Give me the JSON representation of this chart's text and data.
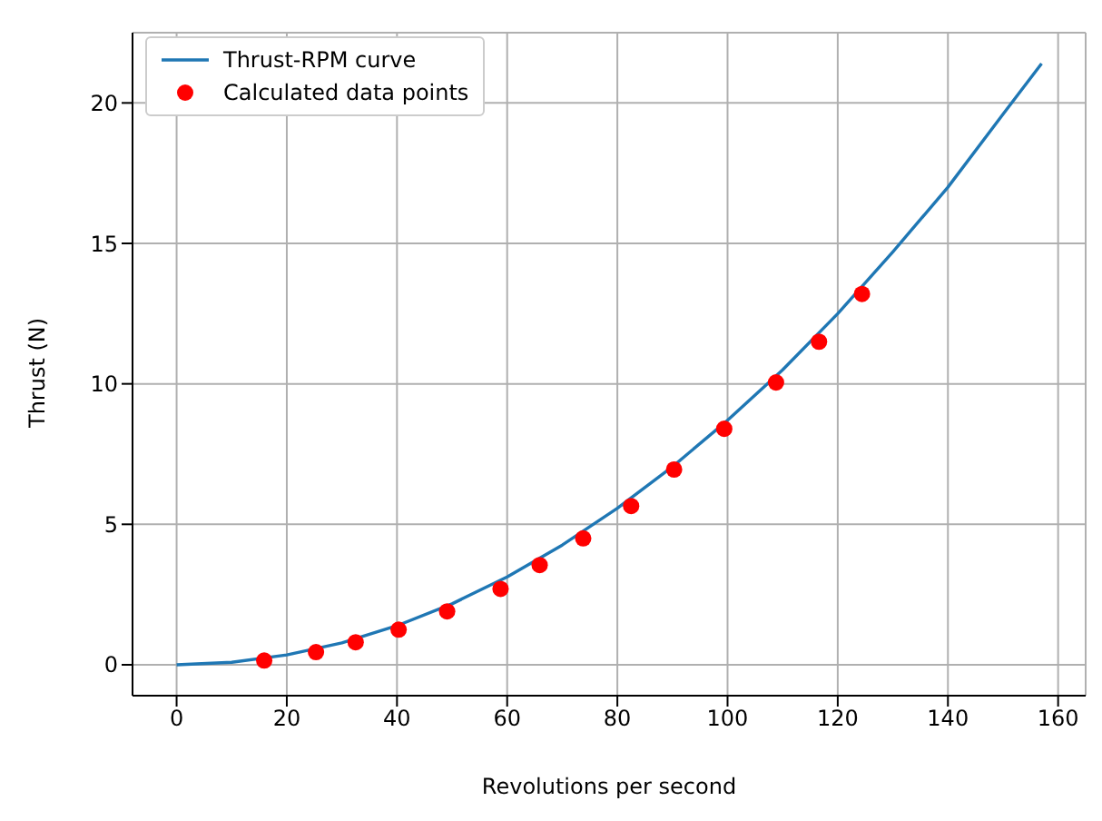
{
  "chart_data": {
    "type": "line",
    "xlabel": "Revolutions per second",
    "ylabel": "Thrust (N)",
    "xlim": [
      -8,
      165
    ],
    "xticks": [
      0,
      20,
      40,
      60,
      80,
      100,
      120,
      140,
      160
    ],
    "ylim": [
      -1.1,
      22.5
    ],
    "yticks": [
      0,
      5,
      10,
      15,
      20
    ],
    "grid": true,
    "legend": "top left",
    "series": [
      {
        "name": "Thrust-RPM curve",
        "color": "#1f77b4",
        "marker": "none",
        "line_style": "solid",
        "x": [
          0,
          10,
          20,
          30,
          40,
          50,
          60,
          70,
          80,
          90,
          100,
          110,
          120,
          130,
          140,
          150,
          157
        ],
        "values": [
          0,
          0.09,
          0.35,
          0.78,
          1.39,
          2.17,
          3.13,
          4.26,
          5.57,
          7.05,
          8.7,
          10.5,
          12.5,
          14.7,
          17.0,
          19.6,
          21.4
        ]
      },
      {
        "name": "Calculated data points",
        "type": "scatter",
        "color": "#ff0000",
        "marker": "circle",
        "x": [
          15.9,
          25.3,
          32.5,
          40.3,
          49.1,
          58.8,
          65.9,
          73.8,
          82.5,
          90.3,
          99.4,
          108.8,
          116.6,
          124.4
        ],
        "values": [
          0.15,
          0.45,
          0.8,
          1.25,
          1.9,
          2.7,
          3.55,
          4.5,
          5.65,
          6.95,
          8.4,
          10.05,
          11.5,
          13.2
        ]
      }
    ]
  }
}
